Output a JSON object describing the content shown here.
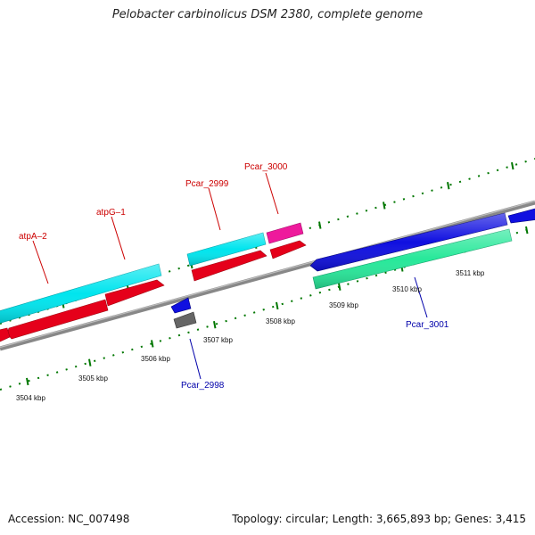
{
  "title": "Pelobacter carbinolicus DSM 2380, complete genome",
  "footer": {
    "accession": "Accession: NC_007498",
    "summary": "Topology: circular; Length: 3,665,893 bp; Genes: 3,415"
  },
  "colors": {
    "backbone": "#888888",
    "ticks": "#007700",
    "label_plus": "#cc0000",
    "label_minus": "#0000aa",
    "kbp_text": "#111111"
  },
  "scale_labels": [
    "3504 kbp",
    "3505 kbp",
    "3506 kbp",
    "3507 kbp",
    "3508 kbp",
    "3509 kbp",
    "3510 kbp",
    "3511 kbp"
  ],
  "gene_labels": {
    "atpA_2": "atpA–2",
    "atpG_1": "atpG–1",
    "pcar_2999": "Pcar_2999",
    "pcar_3000": "Pcar_3000",
    "pcar_3001": "Pcar_3001",
    "pcar_2998": "Pcar_2998"
  },
  "genes": [
    {
      "id": "cyan-gene-left",
      "color": "#00e5ee",
      "strand": "plus"
    },
    {
      "id": "red-gene-left",
      "color": "#e5001a",
      "strand": "plus"
    },
    {
      "id": "red-gene-atpG",
      "color": "#e5001a",
      "strand": "plus"
    },
    {
      "id": "red-gene-edge",
      "color": "#e5001a",
      "strand": "plus"
    },
    {
      "id": "cyan-gene-mid",
      "color": "#00e5ee",
      "strand": "plus"
    },
    {
      "id": "red-gene-mid",
      "color": "#e5001a",
      "strand": "plus"
    },
    {
      "id": "magenta-gene",
      "color": "#ee1a9c",
      "strand": "plus"
    },
    {
      "id": "red-gene-right",
      "color": "#e5001a",
      "strand": "plus"
    },
    {
      "id": "blue-gene-small",
      "color": "#1010e0",
      "strand": "minus"
    },
    {
      "id": "gray-gene-small",
      "color": "#666666",
      "strand": "minus"
    },
    {
      "id": "blue-gene-long",
      "color": "#1010e0",
      "strand": "minus"
    },
    {
      "id": "blue-gene-edge",
      "color": "#1010e0",
      "strand": "minus"
    },
    {
      "id": "green-gene-long",
      "color": "#28e89a",
      "strand": "minus"
    }
  ]
}
